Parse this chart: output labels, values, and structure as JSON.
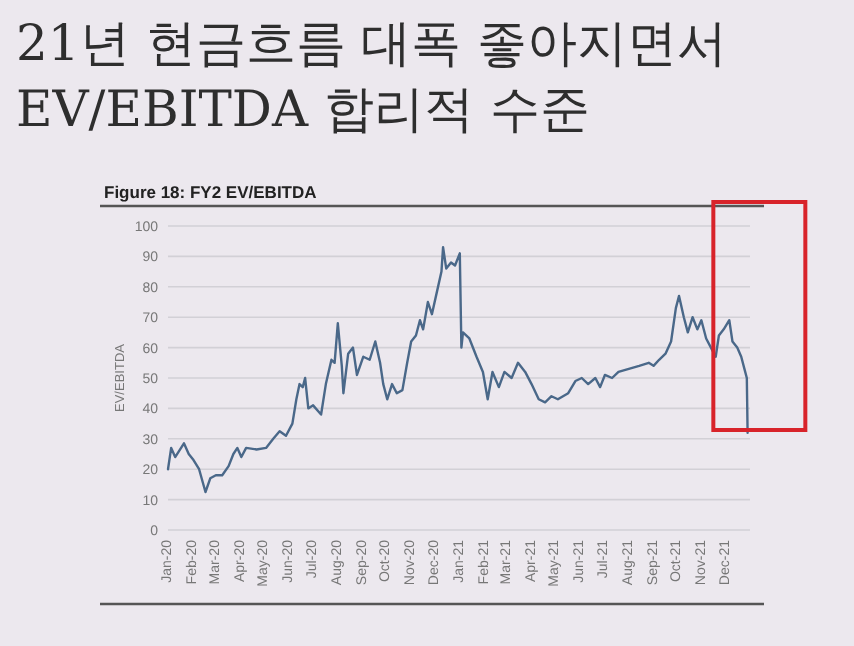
{
  "chart_data": {
    "type": "line",
    "title": "21년 현금흐름 대폭 좋아지면서\nEV/EBITDA 합리적 수준",
    "subtitle": "Figure 18: FY2 EV/EBITDA",
    "ylabel": "EV/EBITDA",
    "x": [
      "2020-01-01",
      "2020-01-05",
      "2020-01-10",
      "2020-01-21",
      "2020-01-27",
      "2020-02-02",
      "2020-02-09",
      "2020-02-17",
      "2020-02-23",
      "2020-03-01",
      "2020-03-09",
      "2020-03-17",
      "2020-03-23",
      "2020-03-28",
      "2020-04-02",
      "2020-04-08",
      "2020-04-21",
      "2020-05-03",
      "2020-05-12",
      "2020-05-20",
      "2020-05-28",
      "2020-06-05",
      "2020-06-10",
      "2020-06-14",
      "2020-06-18",
      "2020-06-21",
      "2020-06-25",
      "2020-07-01",
      "2020-07-11",
      "2020-07-17",
      "2020-07-24",
      "2020-07-28",
      "2020-08-01",
      "2020-08-06",
      "2020-08-08",
      "2020-08-14",
      "2020-08-20",
      "2020-08-25",
      "2020-09-02",
      "2020-09-10",
      "2020-09-17",
      "2020-09-23",
      "2020-09-27",
      "2020-10-02",
      "2020-10-08",
      "2020-10-14",
      "2020-10-21",
      "2020-10-27",
      "2020-11-01",
      "2020-11-07",
      "2020-11-12",
      "2020-11-16",
      "2020-11-22",
      "2020-11-27",
      "2020-12-03",
      "2020-12-09",
      "2020-12-11",
      "2020-12-15",
      "2020-12-21",
      "2020-12-26",
      "2021-01-01",
      "2021-01-03",
      "2021-01-05",
      "2021-01-13",
      "2021-01-22",
      "2021-01-30",
      "2021-02-05",
      "2021-02-11",
      "2021-02-19",
      "2021-02-26",
      "2021-03-07",
      "2021-03-15",
      "2021-03-24",
      "2021-04-01",
      "2021-04-10",
      "2021-04-18",
      "2021-04-26",
      "2021-05-04",
      "2021-05-17",
      "2021-05-26",
      "2021-06-03",
      "2021-06-11",
      "2021-06-20",
      "2021-06-26",
      "2021-07-02",
      "2021-07-11",
      "2021-07-19",
      "2021-08-01",
      "2021-08-14",
      "2021-08-26",
      "2021-09-01",
      "2021-09-08",
      "2021-09-16",
      "2021-09-23",
      "2021-09-29",
      "2021-10-03",
      "2021-10-09",
      "2021-10-14",
      "2021-10-20",
      "2021-10-26",
      "2021-10-31",
      "2021-11-06",
      "2021-11-12",
      "2021-11-18",
      "2021-11-22",
      "2021-11-28",
      "2021-12-05",
      "2021-12-09",
      "2021-12-15",
      "2021-12-20",
      "2021-12-24",
      "2021-12-27",
      "2021-12-28"
    ],
    "values": [
      20,
      27,
      24,
      28.5,
      25,
      23,
      20,
      12.5,
      17,
      18,
      18,
      21,
      25,
      27,
      24,
      27,
      26.5,
      27,
      30,
      32.5,
      31,
      35,
      43,
      48,
      47,
      50,
      40,
      41,
      38,
      48,
      56,
      55,
      68,
      54,
      45,
      58,
      60,
      51,
      57,
      56,
      62,
      55,
      48,
      43,
      48,
      45,
      46,
      55,
      62,
      64,
      69,
      66,
      75,
      71,
      78,
      85,
      93,
      86,
      88,
      87,
      91,
      60,
      65,
      63,
      57,
      52,
      43,
      52,
      47,
      52,
      50,
      55,
      52,
      48,
      43,
      42,
      44,
      43,
      45,
      49,
      50,
      48,
      50,
      47,
      51,
      50,
      52,
      53,
      54,
      55,
      54,
      56,
      58,
      62,
      73,
      77,
      70,
      65,
      70,
      66,
      69,
      63,
      60,
      57,
      64,
      66,
      69,
      62,
      60,
      57,
      53,
      50,
      32
    ],
    "color": "#4a6889",
    "xlim": [
      "2020-01-01",
      "2021-12-31"
    ],
    "xticks": [
      {
        "value": "2020-01-01",
        "label": "Jan-20"
      },
      {
        "value": "2020-02-01",
        "label": "Feb-20"
      },
      {
        "value": "2020-03-01",
        "label": "Mar-20"
      },
      {
        "value": "2020-04-01",
        "label": "Apr-20"
      },
      {
        "value": "2020-05-01",
        "label": "May-20"
      },
      {
        "value": "2020-06-01",
        "label": "Jun-20"
      },
      {
        "value": "2020-07-01",
        "label": "Jul-20"
      },
      {
        "value": "2020-08-01",
        "label": "Aug-20"
      },
      {
        "value": "2020-09-01",
        "label": "Sep-20"
      },
      {
        "value": "2020-10-01",
        "label": "Oct-20"
      },
      {
        "value": "2020-11-01",
        "label": "Nov-20"
      },
      {
        "value": "2020-12-01",
        "label": "Dec-20"
      },
      {
        "value": "2021-01-01",
        "label": "Jan-21"
      },
      {
        "value": "2021-02-01",
        "label": "Feb-21"
      },
      {
        "value": "2021-03-01",
        "label": "Mar-21"
      },
      {
        "value": "2021-04-01",
        "label": "Apr-21"
      },
      {
        "value": "2021-05-01",
        "label": "May-21"
      },
      {
        "value": "2021-06-01",
        "label": "Jun-21"
      },
      {
        "value": "2021-07-01",
        "label": "Jul-21"
      },
      {
        "value": "2021-08-01",
        "label": "Aug-21"
      },
      {
        "value": "2021-09-01",
        "label": "Sep-21"
      },
      {
        "value": "2021-10-01",
        "label": "Oct-21"
      },
      {
        "value": "2021-11-01",
        "label": "Nov-21"
      },
      {
        "value": "2021-12-01",
        "label": "Dec-21"
      }
    ],
    "ylim": [
      0,
      100
    ],
    "yticks": [
      0,
      10,
      20,
      30,
      40,
      50,
      60,
      70,
      80,
      90,
      100
    ],
    "grid": "y"
  }
}
